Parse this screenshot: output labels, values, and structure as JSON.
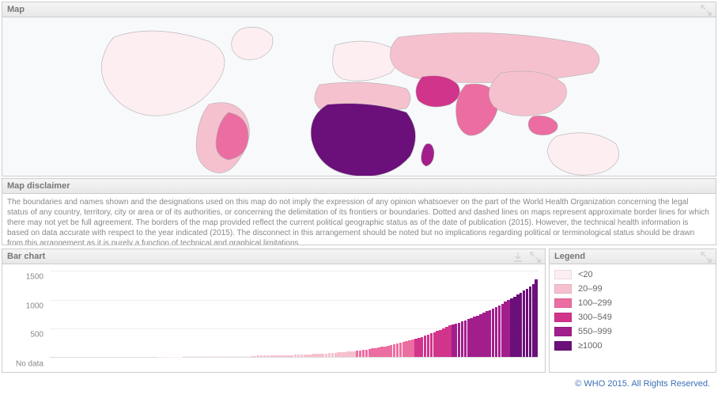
{
  "map": {
    "title": "Map",
    "background_color": "#f7f9fb",
    "country_outline": "#b0b0b0",
    "region_colors": {
      "very_light": "#fdeef2",
      "light": "#f6c1ce",
      "mid": "#ec6da1",
      "dark": "#d1348b",
      "darker": "#a21e8c",
      "darkest": "#6b0f7a"
    }
  },
  "disclaimer": {
    "title": "Map disclaimer",
    "text": "The boundaries and names shown and the designations used on this map do not imply the expression of any opinion whatsoever on the part of the World Health Organization concerning the legal status of any country, territory, city or area or of its authorities, or concerning the delimitation of its frontiers or boundaries. Dotted and dashed lines on maps represent approximate border lines for which there may not yet be full agreement. The borders of the map provided reflect the current political geographic status as of the date of publication (2015). However, the technical health information is based on data accurate with respect to the year indicated (2015). The disconnect in this arrangement should be noted but no implications regarding political or terminological status should be drawn from this arrangement as it is purely a function of technical and graphical limitations."
  },
  "barchart": {
    "title": "Bar chart",
    "ylim": [
      0,
      1500
    ],
    "yticks": [
      0,
      500,
      1000,
      1500
    ],
    "ytick_labels": [
      "No data",
      "500",
      "1000",
      "1500"
    ],
    "grid_color": "#eeeeee",
    "values": [
      0,
      0,
      0,
      0,
      0,
      0,
      0,
      0,
      0,
      0,
      0,
      0,
      0,
      0,
      0,
      0,
      0,
      0,
      0,
      0,
      0,
      0,
      0,
      0,
      0,
      0,
      0,
      0,
      0,
      0,
      0,
      0,
      0,
      0,
      0,
      5,
      5,
      5,
      6,
      6,
      6,
      7,
      7,
      8,
      8,
      8,
      9,
      9,
      10,
      10,
      10,
      11,
      11,
      12,
      12,
      13,
      13,
      14,
      14,
      15,
      15,
      16,
      17,
      18,
      19,
      20,
      20,
      21,
      22,
      23,
      24,
      25,
      26,
      27,
      28,
      29,
      30,
      32,
      34,
      36,
      38,
      40,
      42,
      45,
      48,
      50,
      52,
      55,
      58,
      62,
      66,
      70,
      74,
      78,
      82,
      86,
      90,
      95,
      99,
      105,
      112,
      120,
      128,
      136,
      145,
      155,
      165,
      175,
      185,
      195,
      206,
      218,
      230,
      243,
      256,
      270,
      285,
      299,
      315,
      332,
      350,
      368,
      387,
      407,
      428,
      450,
      472,
      495,
      519,
      544,
      560,
      578,
      596,
      615,
      635,
      655,
      676,
      698,
      720,
      743,
      767,
      792,
      818,
      844,
      872,
      900,
      929,
      959,
      990,
      1020,
      1052,
      1085,
      1119,
      1154,
      1190,
      1227,
      1265,
      1350
    ],
    "bands": [
      {
        "max": 20,
        "color": "#fdeef2"
      },
      {
        "max": 100,
        "color": "#f6c1ce"
      },
      {
        "max": 300,
        "color": "#ec6da1"
      },
      {
        "max": 550,
        "color": "#d1348b"
      },
      {
        "max": 1000,
        "color": "#a21e8c"
      },
      {
        "max": 99999,
        "color": "#6b0f7a"
      }
    ]
  },
  "legend": {
    "title": "Legend",
    "items": [
      {
        "label": "<20",
        "color": "#fdeef2"
      },
      {
        "label": "20–99",
        "color": "#f6c1ce"
      },
      {
        "label": "100–299",
        "color": "#ec6da1"
      },
      {
        "label": "300–549",
        "color": "#d1348b"
      },
      {
        "label": "550–999",
        "color": "#a21e8c"
      },
      {
        "label": "≥1000",
        "color": "#6b0f7a"
      }
    ]
  },
  "footer": {
    "copyright": "© WHO 2015. All Rights Reserved."
  }
}
